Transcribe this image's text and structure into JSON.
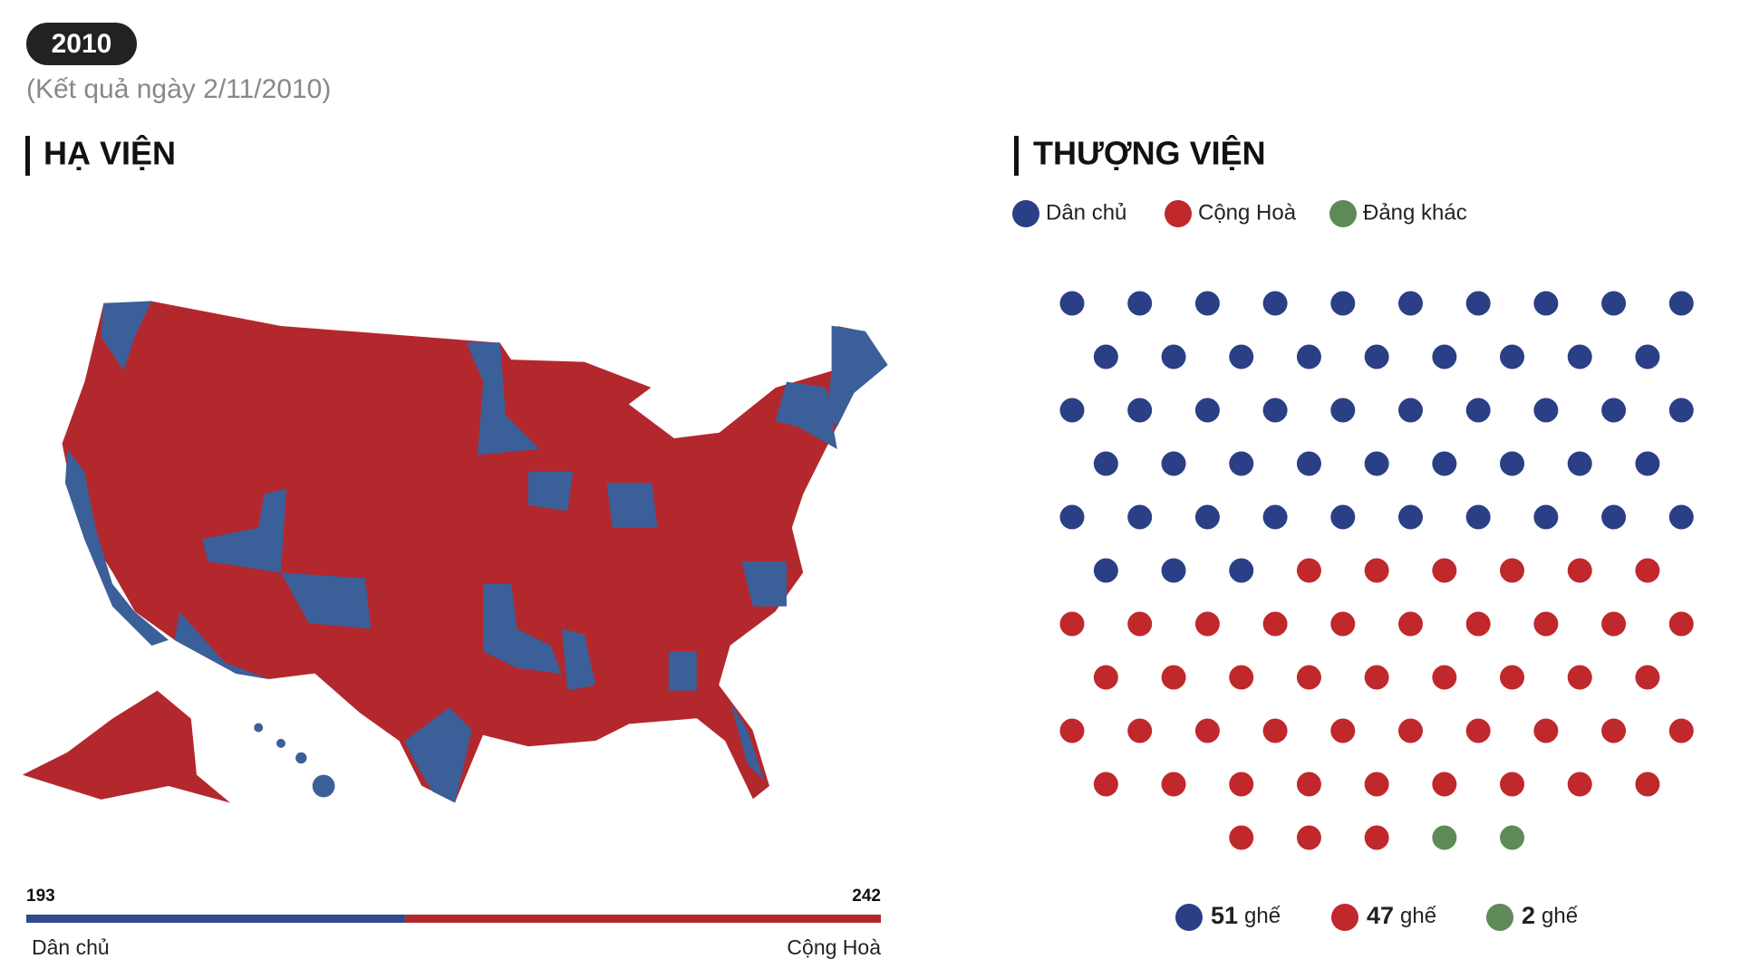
{
  "header": {
    "year": "2010",
    "subtitle": "(Kết quả ngày 2/11/2010)"
  },
  "house": {
    "title": "HẠ VIỆN",
    "parties": [
      {
        "name": "Dân chủ",
        "color": "#2f4b8e",
        "value": 193
      },
      {
        "name": "Cộng Hoà",
        "color": "#b3282d",
        "value": 242
      }
    ]
  },
  "senate": {
    "title": "THƯỢNG VIỆN",
    "unit": "ghế",
    "parties": [
      {
        "name": "Dân chủ",
        "color": "#2a3f86",
        "value": 51
      },
      {
        "name": "Cộng Hoà",
        "color": "#c0282b",
        "value": 47
      },
      {
        "name": "Đảng khác",
        "color": "#5e8a57",
        "value": 2
      }
    ]
  }
}
